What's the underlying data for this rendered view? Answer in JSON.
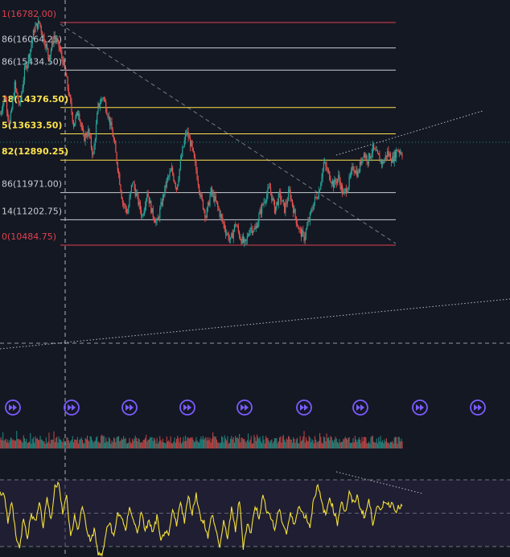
{
  "colors": {
    "background": "#141823",
    "fib_red": "#e0414f",
    "fib_white": "#c9ccd3",
    "fib_yellow": "#ffe34d",
    "candle_up": "#26a69a",
    "candle_down": "#ef5350",
    "trendline": "#c9ccd3",
    "rsi_line": "#f5e23b",
    "rsi_band": "#2a2540",
    "event_icon": "#7b5cff"
  },
  "icons": {
    "event_marker": "fast-forward-circle-icon"
  },
  "fib_levels": [
    {
      "label": "1(16782.00)",
      "price": 16782.0,
      "color": "red",
      "bold": false
    },
    {
      "label": "86(16064.25)",
      "price": 16064.25,
      "color": "white",
      "bold": false
    },
    {
      "label": "86(15434.50)",
      "price": 15434.5,
      "color": "white",
      "bold": false
    },
    {
      "label": "18(14376.50)",
      "price": 14376.5,
      "color": "yellow",
      "bold": true
    },
    {
      "label": "5(13633.50)",
      "price": 13633.5,
      "color": "yellow",
      "bold": true
    },
    {
      "label": "82(12890.25)",
      "price": 12890.25,
      "color": "yellow",
      "bold": true
    },
    {
      "label": "86(11971.00)",
      "price": 11971.0,
      "color": "white",
      "bold": false
    },
    {
      "label": "14(11202.75)",
      "price": 11202.75,
      "color": "white",
      "bold": false
    },
    {
      "label": "0(10484.75)",
      "price": 10484.75,
      "color": "red",
      "bold": false
    }
  ],
  "chart_data": {
    "type": "line",
    "price_range": [
      10484.75,
      16782.0
    ],
    "price_anchors": [
      [
        0,
        14200
      ],
      [
        5,
        14700
      ],
      [
        10,
        13900
      ],
      [
        15,
        15000
      ],
      [
        20,
        14400
      ],
      [
        25,
        15400
      ],
      [
        30,
        15900
      ],
      [
        35,
        16600
      ],
      [
        40,
        16782
      ],
      [
        45,
        16300
      ],
      [
        50,
        15800
      ],
      [
        55,
        16400
      ],
      [
        60,
        16100
      ],
      [
        65,
        15600
      ],
      [
        70,
        14800
      ],
      [
        75,
        13900
      ],
      [
        80,
        14300
      ],
      [
        85,
        13500
      ],
      [
        90,
        13700
      ],
      [
        95,
        13000
      ],
      [
        100,
        14400
      ],
      [
        105,
        14700
      ],
      [
        110,
        14200
      ],
      [
        115,
        13600
      ],
      [
        120,
        12700
      ],
      [
        125,
        11700
      ],
      [
        130,
        11400
      ],
      [
        135,
        12300
      ],
      [
        140,
        11800
      ],
      [
        145,
        11300
      ],
      [
        150,
        12000
      ],
      [
        155,
        11400
      ],
      [
        160,
        11100
      ],
      [
        165,
        11700
      ],
      [
        170,
        12300
      ],
      [
        175,
        12600
      ],
      [
        180,
        12100
      ],
      [
        185,
        13000
      ],
      [
        190,
        13700
      ],
      [
        195,
        13300
      ],
      [
        200,
        12600
      ],
      [
        205,
        11800
      ],
      [
        210,
        11300
      ],
      [
        215,
        12000
      ],
      [
        220,
        11700
      ],
      [
        225,
        11300
      ],
      [
        230,
        10900
      ],
      [
        235,
        10600
      ],
      [
        240,
        11100
      ],
      [
        245,
        10700
      ],
      [
        250,
        10490
      ],
      [
        255,
        11000
      ],
      [
        260,
        10900
      ],
      [
        265,
        11400
      ],
      [
        270,
        11800
      ],
      [
        275,
        12100
      ],
      [
        280,
        11500
      ],
      [
        285,
        11900
      ],
      [
        290,
        11500
      ],
      [
        295,
        12000
      ],
      [
        300,
        11400
      ],
      [
        305,
        10900
      ],
      [
        310,
        10700
      ],
      [
        315,
        11200
      ],
      [
        320,
        11700
      ],
      [
        325,
        12000
      ],
      [
        330,
        12800
      ],
      [
        335,
        12500
      ],
      [
        340,
        12200
      ],
      [
        345,
        12400
      ],
      [
        350,
        11900
      ],
      [
        355,
        12200
      ],
      [
        360,
        12700
      ],
      [
        365,
        12500
      ],
      [
        370,
        13100
      ],
      [
        375,
        12900
      ],
      [
        380,
        13200
      ],
      [
        385,
        13000
      ],
      [
        390,
        12800
      ],
      [
        395,
        13100
      ],
      [
        400,
        12900
      ],
      [
        405,
        13200
      ],
      [
        410,
        13100
      ]
    ],
    "rsi_anchors": [
      [
        0,
        62
      ],
      [
        4,
        63
      ],
      [
        8,
        44
      ],
      [
        12,
        57
      ],
      [
        16,
        38
      ],
      [
        20,
        28
      ],
      [
        24,
        48
      ],
      [
        28,
        36
      ],
      [
        32,
        50
      ],
      [
        36,
        44
      ],
      [
        40,
        58
      ],
      [
        44,
        42
      ],
      [
        48,
        60
      ],
      [
        52,
        45
      ],
      [
        56,
        66
      ],
      [
        60,
        69
      ],
      [
        64,
        50
      ],
      [
        68,
        60
      ],
      [
        72,
        35
      ],
      [
        76,
        48
      ],
      [
        80,
        40
      ],
      [
        84,
        55
      ],
      [
        88,
        42
      ],
      [
        92,
        33
      ],
      [
        96,
        40
      ],
      [
        100,
        26
      ],
      [
        104,
        24
      ],
      [
        108,
        38
      ],
      [
        112,
        45
      ],
      [
        116,
        35
      ],
      [
        120,
        50
      ],
      [
        124,
        48
      ],
      [
        128,
        38
      ],
      [
        132,
        55
      ],
      [
        136,
        45
      ],
      [
        140,
        39
      ],
      [
        144,
        50
      ],
      [
        148,
        40
      ],
      [
        152,
        45
      ],
      [
        156,
        38
      ],
      [
        160,
        48
      ],
      [
        164,
        32
      ],
      [
        168,
        40
      ],
      [
        172,
        35
      ],
      [
        176,
        52
      ],
      [
        180,
        42
      ],
      [
        184,
        58
      ],
      [
        188,
        45
      ],
      [
        192,
        60
      ],
      [
        196,
        50
      ],
      [
        200,
        62
      ],
      [
        204,
        48
      ],
      [
        208,
        45
      ],
      [
        212,
        35
      ],
      [
        216,
        50
      ],
      [
        220,
        40
      ],
      [
        224,
        30
      ],
      [
        228,
        44
      ],
      [
        232,
        36
      ],
      [
        236,
        52
      ],
      [
        240,
        40
      ],
      [
        244,
        58
      ],
      [
        248,
        30
      ],
      [
        252,
        44
      ],
      [
        256,
        38
      ],
      [
        260,
        55
      ],
      [
        264,
        48
      ],
      [
        268,
        60
      ],
      [
        272,
        52
      ],
      [
        276,
        48
      ],
      [
        280,
        40
      ],
      [
        284,
        52
      ],
      [
        288,
        45
      ],
      [
        292,
        38
      ],
      [
        296,
        50
      ],
      [
        300,
        42
      ],
      [
        304,
        55
      ],
      [
        308,
        50
      ],
      [
        312,
        48
      ],
      [
        316,
        42
      ],
      [
        320,
        60
      ],
      [
        324,
        66
      ],
      [
        328,
        56
      ],
      [
        332,
        48
      ],
      [
        336,
        60
      ],
      [
        340,
        52
      ],
      [
        344,
        44
      ],
      [
        348,
        58
      ],
      [
        352,
        50
      ],
      [
        356,
        62
      ],
      [
        360,
        56
      ],
      [
        364,
        60
      ],
      [
        368,
        52
      ],
      [
        372,
        48
      ],
      [
        376,
        58
      ],
      [
        380,
        44
      ],
      [
        384,
        55
      ],
      [
        388,
        50
      ],
      [
        392,
        58
      ],
      [
        396,
        55
      ],
      [
        400,
        56
      ],
      [
        404,
        52
      ],
      [
        408,
        54
      ]
    ],
    "events_count": 9
  }
}
